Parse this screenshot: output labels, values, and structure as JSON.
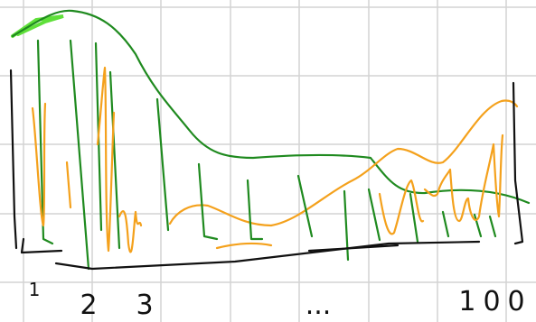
{
  "labels": [
    "1",
    "2",
    "3",
    "...",
    "100"
  ]
}
